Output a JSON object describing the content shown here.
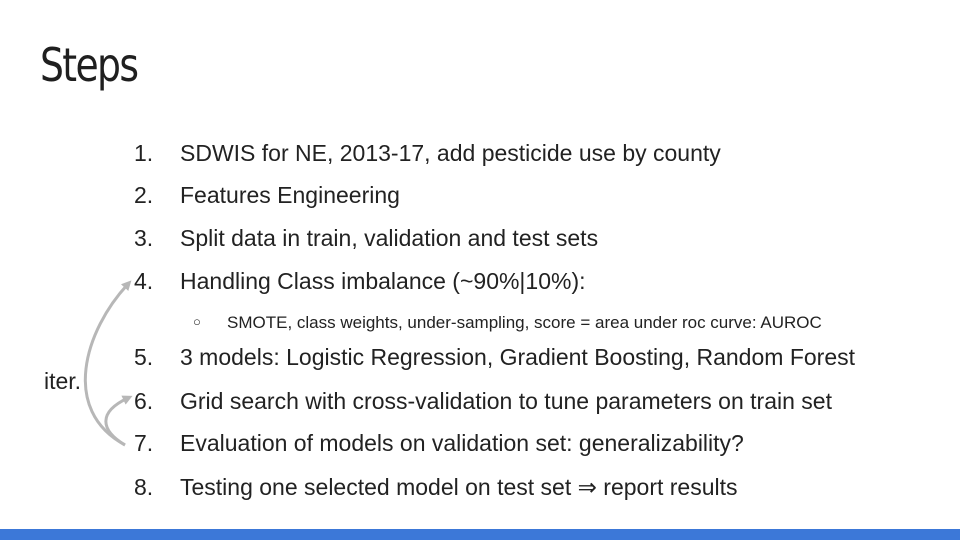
{
  "slide": {
    "title": "Steps",
    "iter_label": "iter.",
    "steps": [
      {
        "number": "1.",
        "text": "SDWIS for NE, 2013-17, add pesticide use by county"
      },
      {
        "number": "2.",
        "text": "Features Engineering"
      },
      {
        "number": "3.",
        "text": "Split data in train, validation and test sets"
      },
      {
        "number": "4.",
        "text": "Handling Class imbalance (~90%|10%):"
      },
      {
        "number": "5.",
        "text": "3 models: Logistic Regression, Gradient Boosting, Random Forest"
      },
      {
        "number": "6.",
        "text": "Grid search with cross-validation to tune parameters on train set"
      },
      {
        "number": "7.",
        "text": "Evaluation of models on validation set: generalizability?"
      },
      {
        "number": "8.",
        "text": "Testing one selected model on test set ⇒ report results"
      }
    ],
    "sub_bullet": {
      "marker": "○",
      "text": "SMOTE, class weights, under-sampling, score = area under roc curve: AUROC"
    }
  },
  "colors": {
    "footer_bar": "#3c78d8",
    "arrow": "#b7b7b7",
    "text": "#222222"
  }
}
